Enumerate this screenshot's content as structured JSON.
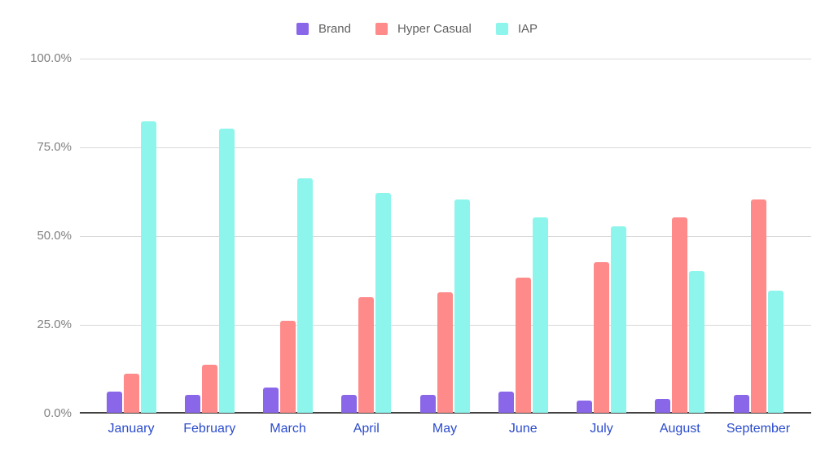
{
  "chart_data": {
    "type": "bar",
    "title": "",
    "xlabel": "",
    "ylabel": "",
    "categories": [
      "January",
      "February",
      "March",
      "April",
      "May",
      "June",
      "July",
      "August",
      "September"
    ],
    "series": [
      {
        "name": "Brand",
        "color": "#8a66e8",
        "values": [
          6,
          5,
          7,
          5,
          5,
          6,
          3.5,
          4,
          5
        ]
      },
      {
        "name": "Hyper Casual",
        "color": "#ff8a8a",
        "values": [
          11,
          13.5,
          26,
          32.5,
          34,
          38,
          42.5,
          55,
          60
        ]
      },
      {
        "name": "IAP",
        "color": "#8df5ec",
        "values": [
          82,
          80,
          66,
          62,
          60,
          55,
          52.5,
          40,
          34.5
        ]
      }
    ],
    "ylim": [
      0,
      100
    ],
    "yticks": [
      {
        "value": 100,
        "label": "100.0%"
      },
      {
        "value": 75,
        "label": "75.0%"
      },
      {
        "value": 50,
        "label": "50.0%"
      },
      {
        "value": 25,
        "label": "25.0%"
      },
      {
        "value": 0,
        "label": "0.0%"
      }
    ],
    "grid": true,
    "legend_position": "top"
  },
  "style": {
    "background": "#ffffff",
    "grid_color": "#d9d9d9",
    "axis_line_color": "#424242",
    "ytick_color": "#808080",
    "xtick_color": "#2a4bcc",
    "legend_text_color": "#616161"
  }
}
